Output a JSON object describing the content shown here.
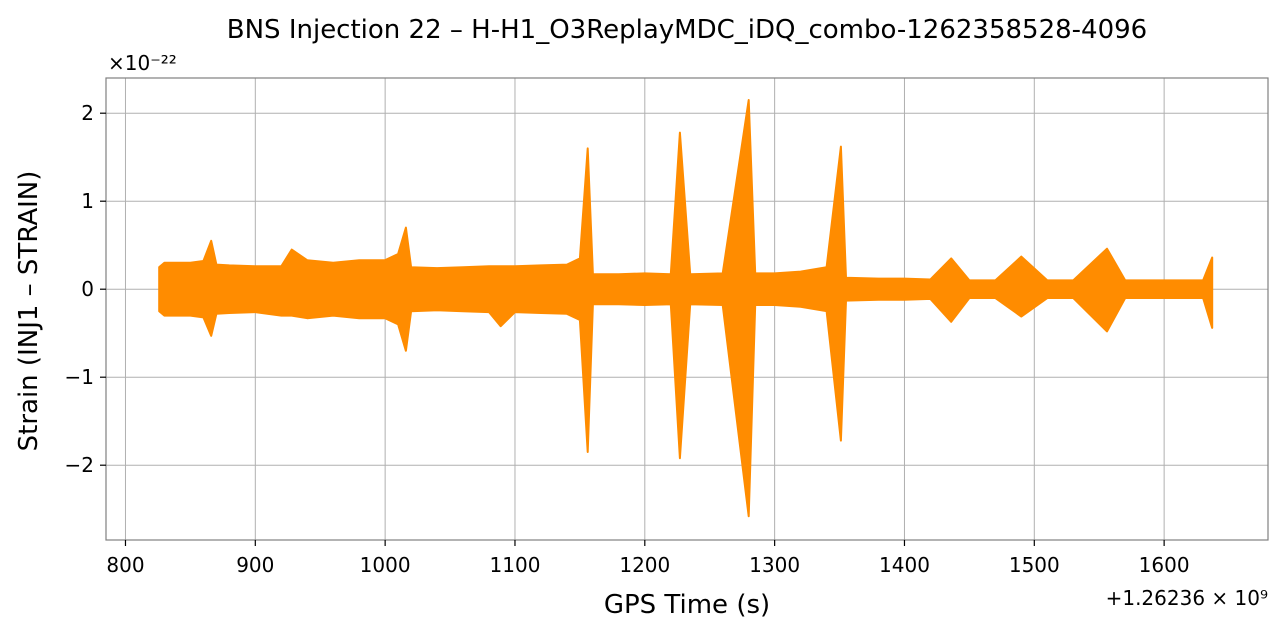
{
  "chart_data": {
    "type": "line",
    "title": "BNS Injection 22 – H-H1_O3ReplayMDC_iDQ_combo-1262358528-4096",
    "xlabel": "GPS Time (s)",
    "ylabel": "Strain (INJ1 – STRAIN)",
    "x_offset_label": "+1.26236 × 10⁹",
    "y_scale_label": "×10⁻²²",
    "xlim": [
      785,
      1680
    ],
    "ylim": [
      -2.85,
      2.4
    ],
    "x_ticks": [
      800,
      900,
      1000,
      1100,
      1200,
      1300,
      1400,
      1500,
      1600
    ],
    "x_tick_labels": [
      "800",
      "900",
      "1000",
      "1100",
      "1200",
      "1300",
      "1400",
      "1500",
      "1600"
    ],
    "y_ticks": [
      -2,
      -1,
      0,
      1,
      2
    ],
    "y_tick_labels": [
      "−2",
      "−1",
      "0",
      "1",
      "2"
    ],
    "grid": true,
    "series_color": "#ff8c00",
    "series": [
      {
        "x": [
          826,
          830,
          840,
          850,
          860,
          866,
          870,
          880,
          900,
          920,
          928,
          940,
          960,
          980,
          1000,
          1010,
          1016,
          1020,
          1040,
          1060,
          1080,
          1089,
          1100,
          1120,
          1140,
          1150,
          1156,
          1160,
          1180,
          1200,
          1220,
          1227,
          1235,
          1260,
          1280,
          1285,
          1300,
          1320,
          1340,
          1351,
          1355,
          1380,
          1400,
          1420,
          1436,
          1450,
          1470,
          1490,
          1510,
          1530,
          1556,
          1570,
          1590,
          1610,
          1630,
          1637
        ],
        "upper": [
          0.25,
          0.3,
          0.3,
          0.3,
          0.32,
          0.55,
          0.28,
          0.27,
          0.26,
          0.26,
          0.45,
          0.33,
          0.3,
          0.33,
          0.33,
          0.4,
          0.7,
          0.25,
          0.24,
          0.25,
          0.26,
          0.26,
          0.26,
          0.27,
          0.28,
          0.35,
          1.6,
          0.17,
          0.17,
          0.18,
          0.17,
          1.78,
          0.17,
          0.18,
          2.15,
          0.18,
          0.18,
          0.2,
          0.25,
          1.62,
          0.13,
          0.12,
          0.12,
          0.11,
          0.35,
          0.1,
          0.1,
          0.37,
          0.1,
          0.1,
          0.46,
          0.1,
          0.1,
          0.1,
          0.1,
          0.36
        ],
        "lower": [
          -0.25,
          -0.3,
          -0.3,
          -0.3,
          -0.32,
          -0.53,
          -0.28,
          -0.27,
          -0.26,
          -0.3,
          -0.3,
          -0.33,
          -0.3,
          -0.33,
          -0.33,
          -0.4,
          -0.7,
          -0.25,
          -0.24,
          -0.25,
          -0.26,
          -0.42,
          -0.26,
          -0.27,
          -0.28,
          -0.35,
          -1.85,
          -0.17,
          -0.17,
          -0.18,
          -0.17,
          -1.92,
          -0.17,
          -0.18,
          -2.58,
          -0.18,
          -0.18,
          -0.2,
          -0.25,
          -1.72,
          -0.13,
          -0.12,
          -0.12,
          -0.11,
          -0.37,
          -0.1,
          -0.1,
          -0.31,
          -0.1,
          -0.1,
          -0.48,
          -0.1,
          -0.1,
          -0.1,
          -0.1,
          -0.44
        ]
      }
    ]
  }
}
